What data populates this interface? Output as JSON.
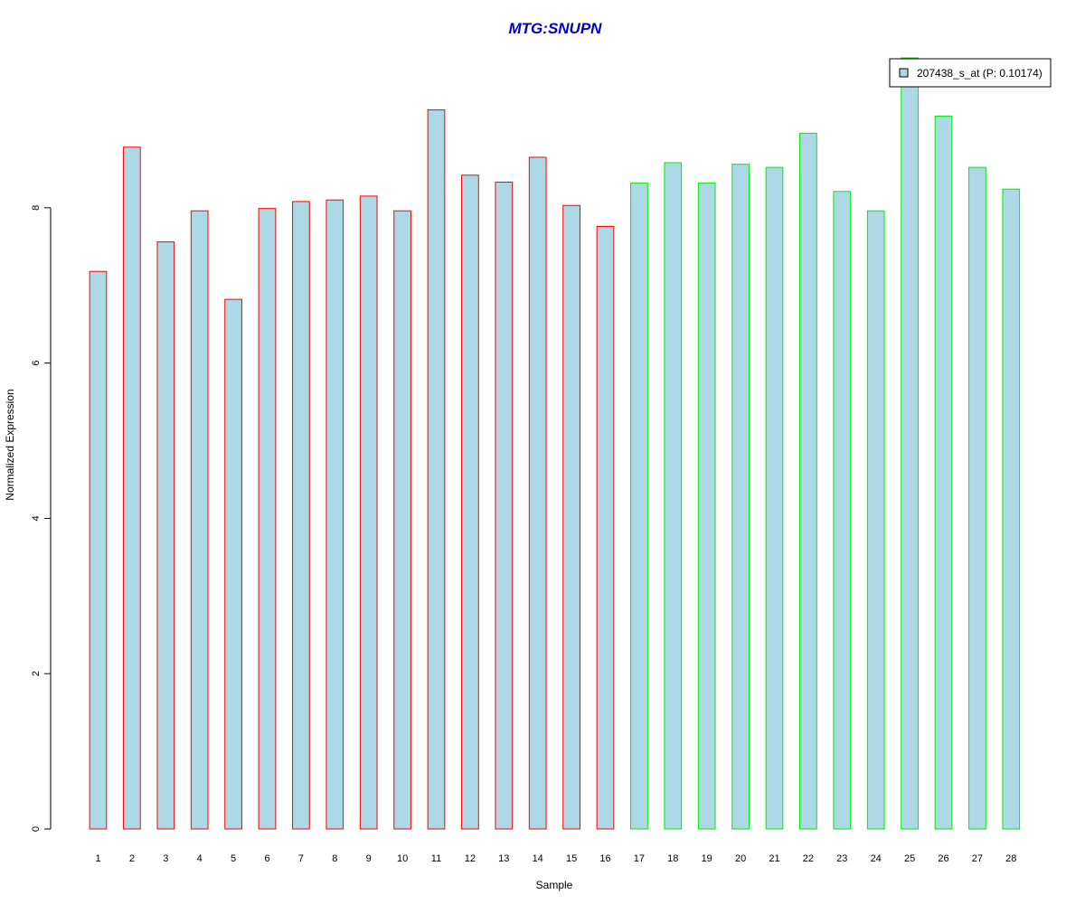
{
  "chart_data": {
    "type": "bar",
    "title": "MTG:SNUPN",
    "xlabel": "Sample",
    "ylabel": "Normalized Expression",
    "categories": [
      "1",
      "2",
      "3",
      "4",
      "5",
      "6",
      "7",
      "8",
      "9",
      "10",
      "11",
      "12",
      "13",
      "14",
      "15",
      "16",
      "17",
      "18",
      "19",
      "20",
      "21",
      "22",
      "23",
      "24",
      "25",
      "26",
      "27",
      "28"
    ],
    "series": [
      {
        "name": "207438_s_at (P: 0.10174)",
        "values": [
          7.18,
          8.78,
          7.56,
          7.96,
          6.82,
          7.99,
          8.08,
          8.1,
          8.15,
          7.96,
          9.26,
          8.42,
          8.33,
          8.65,
          8.03,
          7.76,
          8.32,
          8.58,
          8.32,
          8.56,
          8.52,
          8.96,
          8.21,
          7.96,
          9.93,
          9.18,
          8.52,
          8.24
        ]
      }
    ],
    "group_border_colors": [
      "#ff0000",
      "#ff0000",
      "#ff0000",
      "#ff0000",
      "#ff0000",
      "#ff0000",
      "#ff0000",
      "#ff0000",
      "#ff0000",
      "#ff0000",
      "#ff0000",
      "#ff0000",
      "#ff0000",
      "#ff0000",
      "#ff0000",
      "#ff0000",
      "#00ee00",
      "#00ee00",
      "#00ee00",
      "#00ee00",
      "#00ee00",
      "#00ee00",
      "#00ee00",
      "#00ee00",
      "#00ee00",
      "#00ee00",
      "#00ee00",
      "#00ee00"
    ],
    "bar_fill": "#add8e6",
    "title_color": "#0000cc",
    "yticks": [
      0,
      2,
      4,
      6,
      8
    ],
    "ylim": [
      0,
      10
    ],
    "grid": false,
    "legend_position": "top-right"
  }
}
